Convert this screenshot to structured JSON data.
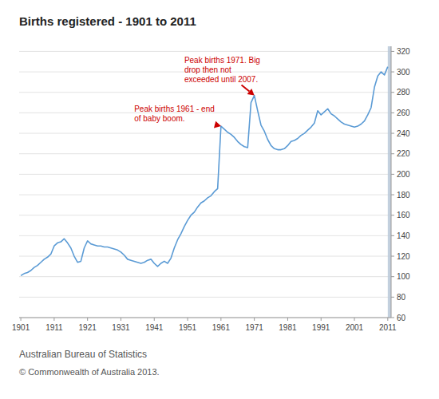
{
  "chart_data": {
    "type": "line",
    "title": "Births registered - 1901 to 2011",
    "color": "#5b9bd5",
    "x": [
      1901,
      1902,
      1903,
      1904,
      1905,
      1906,
      1907,
      1908,
      1909,
      1910,
      1911,
      1912,
      1913,
      1914,
      1915,
      1916,
      1917,
      1918,
      1919,
      1920,
      1921,
      1922,
      1923,
      1924,
      1925,
      1926,
      1927,
      1928,
      1929,
      1930,
      1931,
      1932,
      1933,
      1934,
      1935,
      1936,
      1937,
      1938,
      1939,
      1940,
      1941,
      1942,
      1943,
      1944,
      1945,
      1946,
      1947,
      1948,
      1949,
      1950,
      1951,
      1952,
      1953,
      1954,
      1955,
      1956,
      1957,
      1958,
      1959,
      1960,
      1961,
      1962,
      1963,
      1964,
      1965,
      1966,
      1967,
      1968,
      1969,
      1970,
      1971,
      1972,
      1973,
      1974,
      1975,
      1976,
      1977,
      1978,
      1979,
      1980,
      1981,
      1982,
      1983,
      1984,
      1985,
      1986,
      1987,
      1988,
      1989,
      1990,
      1991,
      1992,
      1993,
      1994,
      1995,
      1996,
      1997,
      1998,
      1999,
      2000,
      2001,
      2002,
      2003,
      2004,
      2005,
      2006,
      2007,
      2008,
      2009,
      2010,
      2011
    ],
    "values": [
      101,
      103,
      104,
      106,
      109,
      111,
      114,
      117,
      119,
      122,
      130,
      133,
      134,
      137,
      133,
      128,
      120,
      114,
      115,
      128,
      135,
      132,
      131,
      130,
      130,
      129,
      129,
      128,
      127,
      126,
      124,
      121,
      117,
      116,
      115,
      114,
      113,
      114,
      116,
      117,
      113,
      110,
      113,
      115,
      113,
      118,
      128,
      136,
      142,
      149,
      155,
      160,
      163,
      168,
      172,
      174,
      177,
      179,
      183,
      186,
      247,
      244,
      241,
      239,
      236,
      232,
      229,
      227,
      226,
      270,
      277,
      262,
      248,
      242,
      234,
      228,
      225,
      224,
      224,
      225,
      228,
      232,
      233,
      235,
      238,
      240,
      243,
      246,
      250,
      262,
      258,
      261,
      264,
      259,
      257,
      254,
      251,
      249,
      248,
      247,
      246,
      247,
      249,
      252,
      258,
      265,
      285,
      296,
      300,
      297,
      305
    ],
    "xlim": [
      1900.5,
      2012
    ],
    "xticks": [
      1901,
      1911,
      1921,
      1931,
      1941,
      1951,
      1961,
      1971,
      1981,
      1991,
      2001,
      2011
    ],
    "ylim": [
      60,
      325
    ],
    "yticks": [
      60,
      80,
      100,
      120,
      140,
      160,
      180,
      200,
      220,
      240,
      260,
      280,
      300,
      320
    ],
    "grid": true,
    "highlight_x": [
      2011,
      2013
    ],
    "highlight_color": "#b8c8d8",
    "annotations": [
      {
        "text": "Peak births 1971.  Big\ndrop then not\nexceeded until 2007.",
        "x": 1971,
        "y": 277,
        "text_x": 1950,
        "text_y": 316,
        "color": "#cc0000"
      },
      {
        "text": "Peak births 1961 - end\nof baby boom.",
        "x": 1961,
        "y": 247,
        "text_x": 1935,
        "text_y": 268,
        "color": "#cc0000"
      }
    ],
    "footer": [
      "Australian Bureau of Statistics",
      "© Commonwealth of Australia 2013."
    ]
  }
}
